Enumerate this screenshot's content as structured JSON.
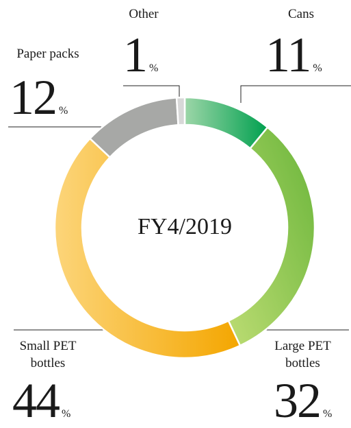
{
  "chart_data": {
    "type": "donut",
    "center_label": "FY4/2019",
    "unit": "%",
    "categories": [
      "Cans",
      "Large PET bottles",
      "Small PET bottles",
      "Paper packs",
      "Other"
    ],
    "values": [
      11,
      32,
      44,
      12,
      1
    ],
    "colors": [
      "#00a04f",
      "#6ab53a",
      "#f4a600",
      "#a7a8a6",
      "#d8d8d8"
    ]
  }
}
